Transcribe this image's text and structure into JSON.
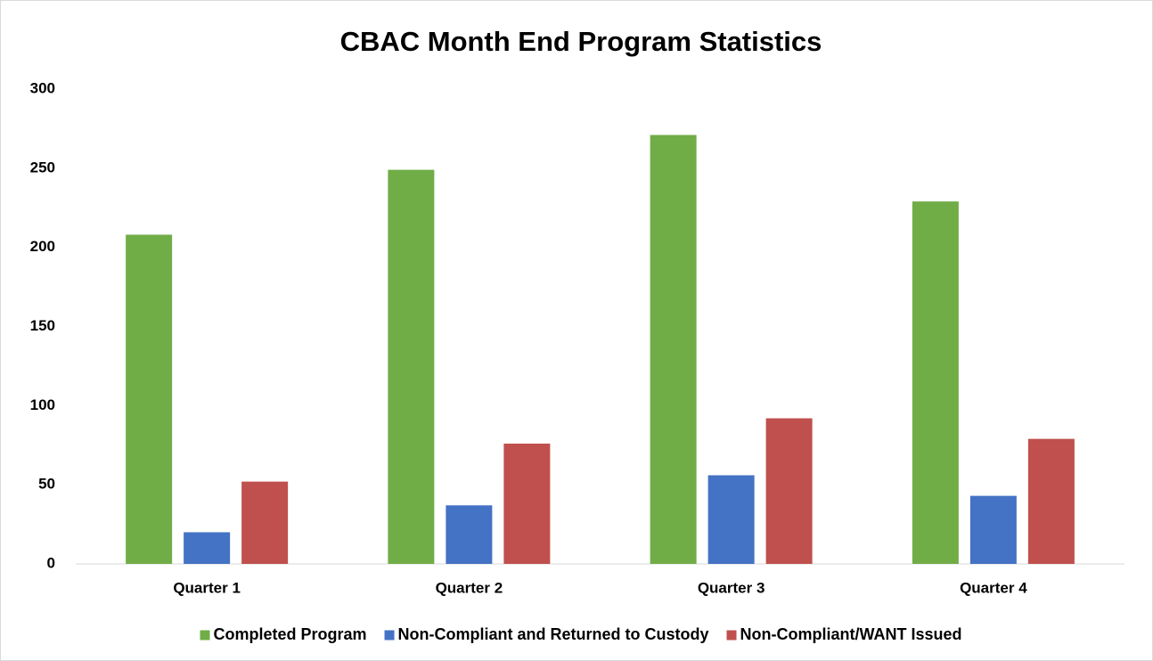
{
  "chart_data": {
    "type": "bar",
    "title": "CBAC Month End Program Statistics",
    "categories": [
      "Quarter 1",
      "Quarter 2",
      "Quarter 3",
      "Quarter 4"
    ],
    "series": [
      {
        "name": "Completed Program",
        "color": "#70ad47",
        "values": [
          208,
          249,
          271,
          229
        ]
      },
      {
        "name": "Non-Compliant and Returned to Custody",
        "color": "#4472c4",
        "values": [
          20,
          37,
          56,
          43
        ]
      },
      {
        "name": "Non-Compliant/WANT Issued",
        "color": "#c0504d",
        "values": [
          52,
          76,
          92,
          79
        ]
      }
    ],
    "ylim": [
      0,
      300
    ],
    "yticks": [
      0,
      50,
      100,
      150,
      200,
      250,
      300
    ],
    "grid": false,
    "legend": "bottom"
  }
}
